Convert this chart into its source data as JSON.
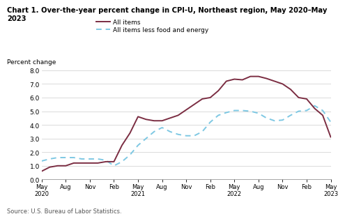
{
  "title_line1": "Chart 1. Over-the-year percent change in CPI-U, Northeast region, May 2020–May",
  "title_line2": "2023",
  "ylabel": "Percent change",
  "source": "Source: U.S. Bureau of Labor Statistics.",
  "ylim": [
    0.0,
    8.0
  ],
  "yticks": [
    0.0,
    1.0,
    2.0,
    3.0,
    4.0,
    5.0,
    6.0,
    7.0,
    8.0
  ],
  "xtick_labels": [
    "May\n2020",
    "Aug",
    "Nov",
    "Feb",
    "May\n2021",
    "Aug",
    "Nov",
    "Feb",
    "May\n2022",
    "Aug",
    "Nov",
    "Feb",
    "May\n2023"
  ],
  "all_items_color": "#7B2D42",
  "core_color": "#7EC8E3",
  "all_items_label": "All items",
  "core_label": "All items less food and energy",
  "all_items_y": [
    0.6,
    0.9,
    1.0,
    1.0,
    1.2,
    1.2,
    1.2,
    1.2,
    1.3,
    1.3,
    2.5,
    3.4,
    4.6,
    4.4,
    4.3,
    4.3,
    4.5,
    4.7,
    5.1,
    5.5,
    5.9,
    6.0,
    6.5,
    7.2,
    7.35,
    7.3,
    7.55,
    7.55,
    7.4,
    7.2,
    7.0,
    6.6,
    6.0,
    5.9,
    5.2,
    4.7,
    3.1
  ],
  "core_y": [
    1.35,
    1.5,
    1.6,
    1.6,
    1.6,
    1.5,
    1.5,
    1.5,
    1.4,
    1.0,
    1.3,
    1.8,
    2.5,
    3.0,
    3.5,
    3.8,
    3.5,
    3.3,
    3.2,
    3.2,
    3.5,
    4.2,
    4.7,
    4.9,
    5.05,
    5.05,
    5.0,
    4.85,
    4.5,
    4.3,
    4.35,
    4.7,
    5.0,
    5.05,
    5.4,
    5.05,
    4.2
  ]
}
